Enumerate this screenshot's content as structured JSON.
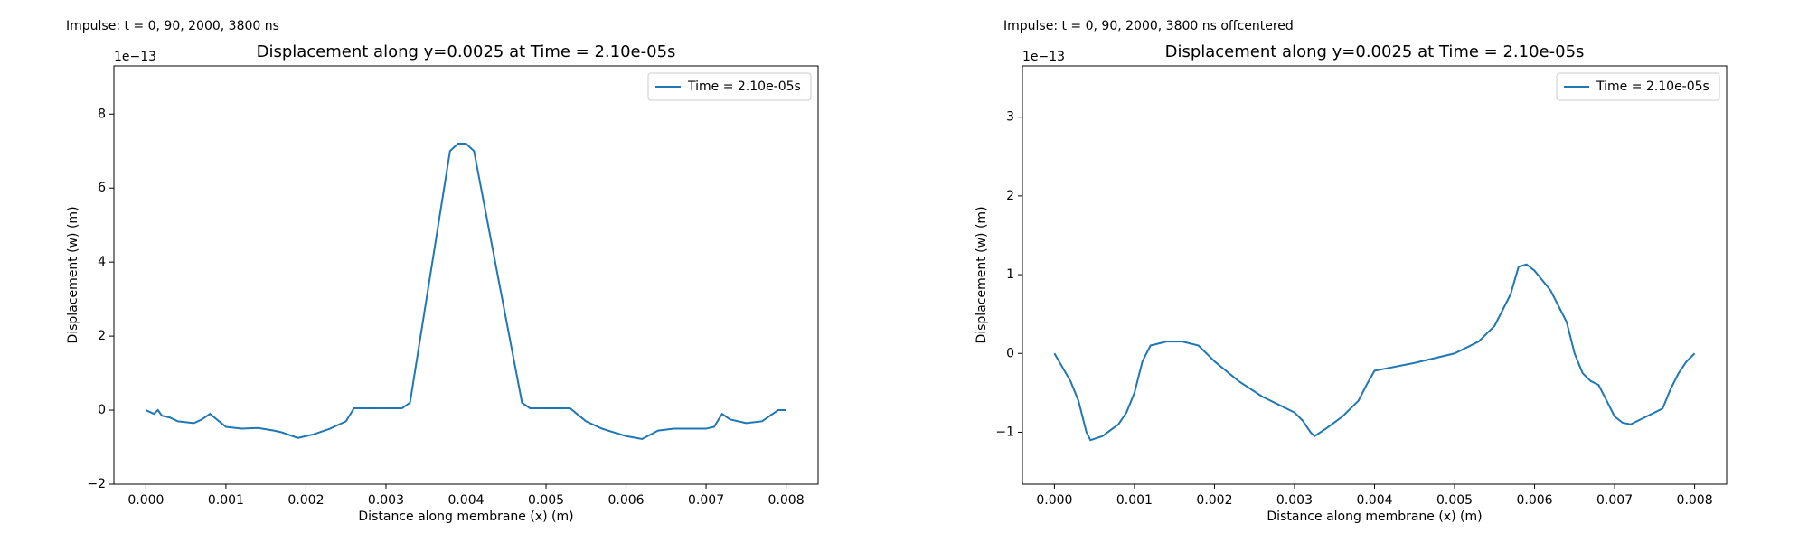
{
  "chart_data": [
    {
      "type": "line",
      "caption": "Impulse: t = 0, 90, 2000, 3800 ns",
      "title": "Displacement along y=0.0025 at Time = 2.10e-05s",
      "x_label": "Distance along membrane (x) (m)",
      "y_label": "Displacement (w) (m)",
      "offset_text": "1e−13",
      "legend": "upper right",
      "x": [
        0,
        0.0001,
        0.00015,
        0.0002,
        0.0003,
        0.0004,
        0.0006,
        0.0007,
        0.0008,
        0.001,
        0.0012,
        0.0014,
        0.0016,
        0.0017,
        0.0019,
        0.0021,
        0.0023,
        0.0025,
        0.0026,
        0.0028,
        0.0031,
        0.0032,
        0.0033,
        0.0038,
        0.0039,
        0.004,
        0.0041,
        0.0047,
        0.0048,
        0.0053,
        0.0055,
        0.0057,
        0.006,
        0.0062,
        0.0064,
        0.0066,
        0.0068,
        0.007,
        0.0071,
        0.0072,
        0.0073,
        0.0075,
        0.0077,
        0.0079,
        0.008
      ],
      "series": [
        {
          "name": "Time = 2.10e-05s",
          "color": "#1f77b4",
          "values": [
            0,
            -0.1,
            0,
            -0.15,
            -0.2,
            -0.3,
            -0.35,
            -0.25,
            -0.1,
            -0.45,
            -0.5,
            -0.48,
            -0.55,
            -0.6,
            -0.75,
            -0.65,
            -0.5,
            -0.3,
            0.05,
            0.05,
            0.05,
            0.05,
            0.2,
            7.0,
            7.2,
            7.2,
            7.0,
            0.2,
            0.05,
            0.05,
            -0.3,
            -0.5,
            -0.7,
            -0.78,
            -0.55,
            -0.5,
            -0.5,
            -0.5,
            -0.45,
            -0.1,
            -0.25,
            -0.35,
            -0.3,
            0,
            0
          ]
        }
      ],
      "xlim": [
        -0.0004,
        0.0084
      ],
      "ylim": [
        -2,
        9.3
      ],
      "xticks": [
        {
          "value": 0,
          "label": "0.000"
        },
        {
          "value": 0.001,
          "label": "0.001"
        },
        {
          "value": 0.002,
          "label": "0.002"
        },
        {
          "value": 0.003,
          "label": "0.003"
        },
        {
          "value": 0.004,
          "label": "0.004"
        },
        {
          "value": 0.005,
          "label": "0.005"
        },
        {
          "value": 0.006,
          "label": "0.006"
        },
        {
          "value": 0.007,
          "label": "0.007"
        },
        {
          "value": 0.008,
          "label": "0.008"
        }
      ],
      "yticks": [
        {
          "value": -2,
          "label": "−2"
        },
        0,
        2,
        4,
        6,
        8
      ]
    },
    {
      "type": "line",
      "caption": "Impulse: t = 0, 90, 2000, 3800 ns offcentered",
      "title": "Displacement along y=0.0025 at Time = 2.10e-05s",
      "x_label": "Distance along membrane (x) (m)",
      "y_label": "Displacement (w) (m)",
      "offset_text": "1e−13",
      "legend": "upper right",
      "x": [
        0,
        0.0002,
        0.0003,
        0.0004,
        0.00045,
        0.0006,
        0.0008,
        0.0009,
        0.001,
        0.0011,
        0.0012,
        0.0014,
        0.0016,
        0.0018,
        0.002,
        0.0023,
        0.0026,
        0.0028,
        0.003,
        0.0031,
        0.0032,
        0.00325,
        0.0034,
        0.0036,
        0.0038,
        0.0039,
        0.004,
        0.0045,
        0.005,
        0.0053,
        0.0055,
        0.0057,
        0.0058,
        0.0059,
        0.006,
        0.0062,
        0.0064,
        0.0065,
        0.0066,
        0.0067,
        0.0068,
        0.0069,
        0.007,
        0.0071,
        0.0072,
        0.0074,
        0.0076,
        0.0077,
        0.0078,
        0.0079,
        0.008
      ],
      "series": [
        {
          "name": "Time = 2.10e-05s",
          "color": "#1f77b4",
          "values": [
            0,
            -0.35,
            -0.6,
            -1.0,
            -1.1,
            -1.05,
            -0.9,
            -0.75,
            -0.5,
            -0.1,
            0.1,
            0.15,
            0.15,
            0.1,
            -0.1,
            -0.35,
            -0.55,
            -0.65,
            -0.75,
            -0.85,
            -1.0,
            -1.05,
            -0.95,
            -0.8,
            -0.6,
            -0.4,
            -0.22,
            -0.12,
            0,
            0.15,
            0.35,
            0.75,
            1.1,
            1.13,
            1.05,
            0.8,
            0.4,
            0,
            -0.25,
            -0.35,
            -0.4,
            -0.6,
            -0.8,
            -0.88,
            -0.9,
            -0.8,
            -0.7,
            -0.45,
            -0.25,
            -0.1,
            0
          ]
        }
      ],
      "xlim": [
        -0.0004,
        0.0084
      ],
      "ylim": [
        -1.66,
        3.65
      ],
      "xticks": [
        {
          "value": 0,
          "label": "0.000"
        },
        {
          "value": 0.001,
          "label": "0.001"
        },
        {
          "value": 0.002,
          "label": "0.002"
        },
        {
          "value": 0.003,
          "label": "0.003"
        },
        {
          "value": 0.004,
          "label": "0.004"
        },
        {
          "value": 0.005,
          "label": "0.005"
        },
        {
          "value": 0.006,
          "label": "0.006"
        },
        {
          "value": 0.007,
          "label": "0.007"
        },
        {
          "value": 0.008,
          "label": "0.008"
        }
      ],
      "yticks": [
        {
          "value": -1,
          "label": "−1"
        },
        0,
        1,
        2,
        3
      ]
    }
  ]
}
